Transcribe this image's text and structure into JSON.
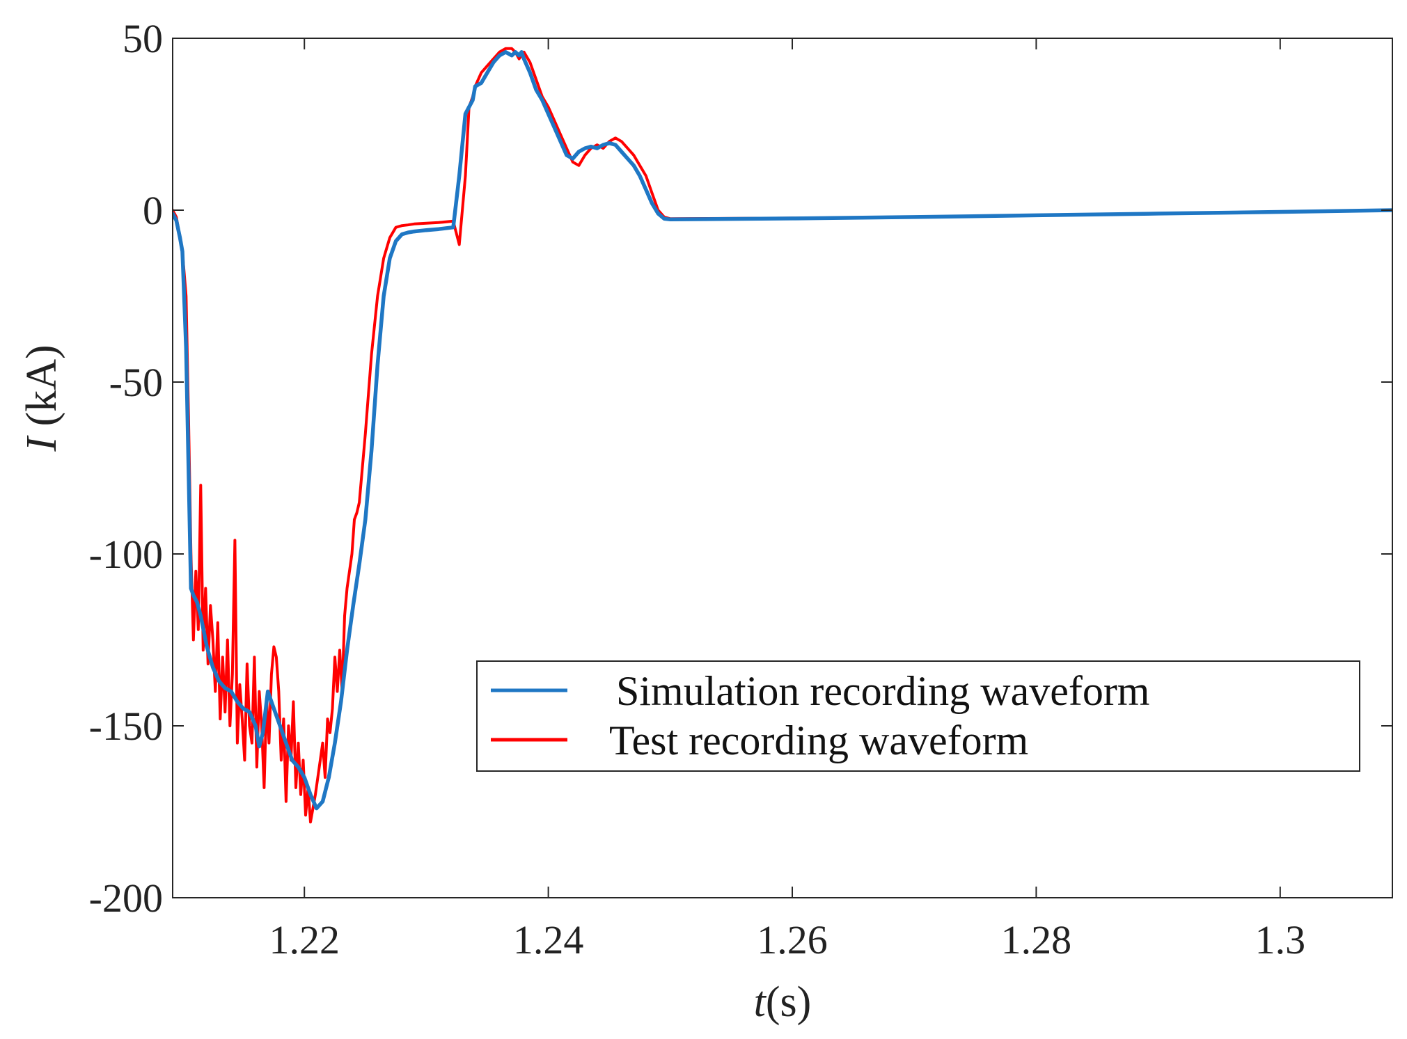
{
  "chart_data": {
    "type": "line",
    "title": "",
    "xlabel": "t",
    "xlabel_unit": "(s)",
    "ylabel": "I",
    "ylabel_unit": " (kA)",
    "xlim": [
      1.2092,
      1.3092
    ],
    "ylim": [
      -200,
      50
    ],
    "xticks": [
      1.22,
      1.24,
      1.26,
      1.28,
      1.3
    ],
    "xtick_labels": [
      "1.22",
      "1.24",
      "1.26",
      "1.28",
      "1.3"
    ],
    "yticks": [
      50,
      0,
      -50,
      -100,
      -150,
      -200
    ],
    "ytick_labels": [
      "50",
      "0",
      "-50",
      "-100",
      "-150",
      "-200"
    ],
    "grid": false,
    "legend_position": "lower-right",
    "series": [
      {
        "name": "Test recording waveform",
        "color": "#ff0000",
        "x": [
          1.2092,
          1.2095,
          1.2098,
          1.21,
          1.2103,
          1.2105,
          1.2107,
          1.2109,
          1.2111,
          1.2113,
          1.2115,
          1.2117,
          1.2119,
          1.2121,
          1.2123,
          1.2125,
          1.2127,
          1.2129,
          1.2131,
          1.2133,
          1.2135,
          1.2137,
          1.2139,
          1.2141,
          1.2143,
          1.2145,
          1.2147,
          1.2149,
          1.2151,
          1.2153,
          1.2155,
          1.2157,
          1.2159,
          1.2161,
          1.2163,
          1.2165,
          1.2167,
          1.2169,
          1.2171,
          1.2173,
          1.2175,
          1.2177,
          1.2179,
          1.2181,
          1.2183,
          1.2185,
          1.2187,
          1.2189,
          1.2191,
          1.2193,
          1.2195,
          1.2197,
          1.2199,
          1.2201,
          1.2203,
          1.2205,
          1.2207,
          1.2209,
          1.2211,
          1.2213,
          1.2215,
          1.2217,
          1.2219,
          1.2221,
          1.2223,
          1.2225,
          1.2227,
          1.2229,
          1.2231,
          1.2233,
          1.2235,
          1.2237,
          1.2239,
          1.2241,
          1.2243,
          1.2245,
          1.225,
          1.2255,
          1.226,
          1.2265,
          1.227,
          1.2275,
          1.228,
          1.2285,
          1.229,
          1.23,
          1.231,
          1.2322,
          1.2327,
          1.2332,
          1.2335,
          1.2338,
          1.234,
          1.2345,
          1.235,
          1.2355,
          1.236,
          1.2365,
          1.237,
          1.2373,
          1.2376,
          1.2378,
          1.238,
          1.2385,
          1.239,
          1.2395,
          1.24,
          1.2405,
          1.241,
          1.2415,
          1.242,
          1.2425,
          1.243,
          1.2435,
          1.244,
          1.2445,
          1.245,
          1.2455,
          1.246,
          1.2465,
          1.247,
          1.2475,
          1.248,
          1.2485,
          1.249,
          1.2495,
          1.25,
          1.26,
          1.27,
          1.28,
          1.29,
          1.3,
          1.3092
        ],
        "y": [
          0,
          -2,
          -8,
          -12,
          -25,
          -60,
          -100,
          -125,
          -105,
          -122,
          -80,
          -128,
          -110,
          -132,
          -115,
          -125,
          -140,
          -120,
          -148,
          -130,
          -146,
          -125,
          -150,
          -135,
          -96,
          -155,
          -138,
          -148,
          -160,
          -132,
          -150,
          -155,
          -130,
          -162,
          -140,
          -150,
          -168,
          -142,
          -155,
          -135,
          -127,
          -130,
          -140,
          -160,
          -148,
          -172,
          -150,
          -160,
          -143,
          -168,
          -155,
          -170,
          -160,
          -176,
          -168,
          -178,
          -174,
          -170,
          -165,
          -160,
          -155,
          -165,
          -148,
          -152,
          -145,
          -130,
          -140,
          -128,
          -140,
          -118,
          -110,
          -105,
          -100,
          -90,
          -88,
          -85,
          -65,
          -42,
          -25,
          -14,
          -8,
          -5,
          -4.5,
          -4.3,
          -4,
          -3.8,
          -3.6,
          -3.2,
          -10,
          10,
          30,
          33,
          36,
          40,
          42,
          44,
          46,
          47,
          47,
          46,
          44,
          45,
          46,
          43,
          38,
          33,
          30,
          26,
          22,
          18,
          14,
          13,
          16,
          18,
          19,
          18,
          20,
          21,
          20,
          18,
          16,
          13,
          10,
          5,
          0,
          -2,
          -2.5,
          -2.3,
          -2,
          -1.5,
          -1,
          -0.5,
          0
        ]
      },
      {
        "name": "Simulation recording waveform",
        "color": "#1f77c4",
        "x": [
          1.2092,
          1.2095,
          1.2098,
          1.21,
          1.2103,
          1.2105,
          1.2107,
          1.2109,
          1.2112,
          1.2115,
          1.212,
          1.2125,
          1.213,
          1.2135,
          1.214,
          1.2145,
          1.215,
          1.2155,
          1.216,
          1.2163,
          1.2166,
          1.217,
          1.2175,
          1.218,
          1.2185,
          1.219,
          1.2195,
          1.22,
          1.2205,
          1.221,
          1.2215,
          1.222,
          1.2225,
          1.223,
          1.2235,
          1.224,
          1.2245,
          1.225,
          1.2255,
          1.226,
          1.2265,
          1.227,
          1.2275,
          1.228,
          1.2285,
          1.229,
          1.23,
          1.231,
          1.2322,
          1.2327,
          1.2332,
          1.2335,
          1.2338,
          1.234,
          1.2345,
          1.235,
          1.2355,
          1.236,
          1.2365,
          1.237,
          1.2373,
          1.2376,
          1.2378,
          1.238,
          1.2385,
          1.239,
          1.2395,
          1.24,
          1.2405,
          1.241,
          1.2415,
          1.242,
          1.2425,
          1.243,
          1.2435,
          1.244,
          1.2445,
          1.245,
          1.2455,
          1.246,
          1.2465,
          1.247,
          1.2475,
          1.248,
          1.2485,
          1.249,
          1.2495,
          1.25,
          1.26,
          1.27,
          1.28,
          1.29,
          1.3,
          1.3092
        ],
        "y": [
          -1,
          -3,
          -8,
          -12,
          -40,
          -75,
          -110,
          -112,
          -114,
          -118,
          -127,
          -133,
          -137,
          -139,
          -140,
          -143,
          -145,
          -146,
          -150,
          -156,
          -152,
          -140,
          -145,
          -150,
          -155,
          -160,
          -162,
          -165,
          -170,
          -174,
          -172,
          -165,
          -155,
          -143,
          -128,
          -115,
          -103,
          -90,
          -70,
          -45,
          -25,
          -14,
          -9,
          -7,
          -6.5,
          -6.2,
          -5.8,
          -5.5,
          -5,
          10,
          28,
          30,
          32,
          36,
          37,
          40,
          43,
          45,
          46,
          45,
          46,
          45,
          46,
          44,
          40,
          35,
          32,
          28,
          24,
          20,
          16,
          15,
          17,
          18,
          18.5,
          18,
          19,
          19.5,
          19,
          17,
          15,
          13,
          10,
          6,
          2,
          -1,
          -2.5,
          -2.7,
          -2.4,
          -2,
          -1.5,
          -1,
          -0.5,
          0
        ]
      }
    ]
  }
}
